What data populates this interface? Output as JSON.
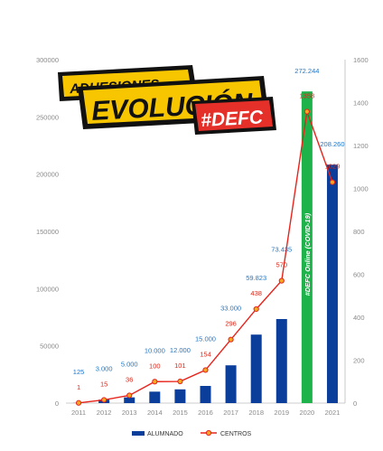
{
  "banner": {
    "line1": "ADHESIONES",
    "line2": "EVOLUCIÓN",
    "line3": "#DEFC"
  },
  "chart_data": {
    "type": "bar",
    "categories": [
      "2011",
      "2012",
      "2013",
      "2014",
      "2015",
      "2016",
      "2017",
      "2018",
      "2019",
      "2020",
      "2021"
    ],
    "series": [
      {
        "name": "ALUMNADO",
        "type": "bar",
        "axis": "left",
        "values": [
          125,
          3000,
          5000,
          10000,
          12000,
          15000,
          33000,
          59823,
          73435,
          272244,
          208260
        ],
        "labels": [
          "125",
          "3.000",
          "5.000",
          "10.000",
          "12.000",
          "15.000",
          "33.000",
          "59.823",
          "73.435",
          "272.244",
          "208.260"
        ],
        "color": "#0b3d9a",
        "highlight": {
          "index": 9,
          "color": "#1db34a",
          "text": "#DEFC Online (COVID-19)"
        }
      },
      {
        "name": "CENTROS",
        "type": "line",
        "axis": "right",
        "values": [
          1,
          15,
          36,
          100,
          101,
          154,
          296,
          438,
          570,
          1358,
          1029
        ],
        "labels": [
          "1",
          "15",
          "36",
          "100",
          "101",
          "154",
          "296",
          "438",
          "570",
          "1358",
          "1029"
        ],
        "color": "#e8231b",
        "marker_color": "#f5a623"
      }
    ],
    "y_left": {
      "min": 0,
      "max": 300000,
      "ticks": [
        "0",
        "50000",
        "100000",
        "150000",
        "200000",
        "250000",
        "300000"
      ]
    },
    "y_right": {
      "min": 0,
      "max": 1600,
      "ticks": [
        "0",
        "200",
        "400",
        "600",
        "800",
        "1000",
        "1200",
        "1400",
        "1600"
      ]
    },
    "grid": false,
    "legend_position": "bottom"
  }
}
